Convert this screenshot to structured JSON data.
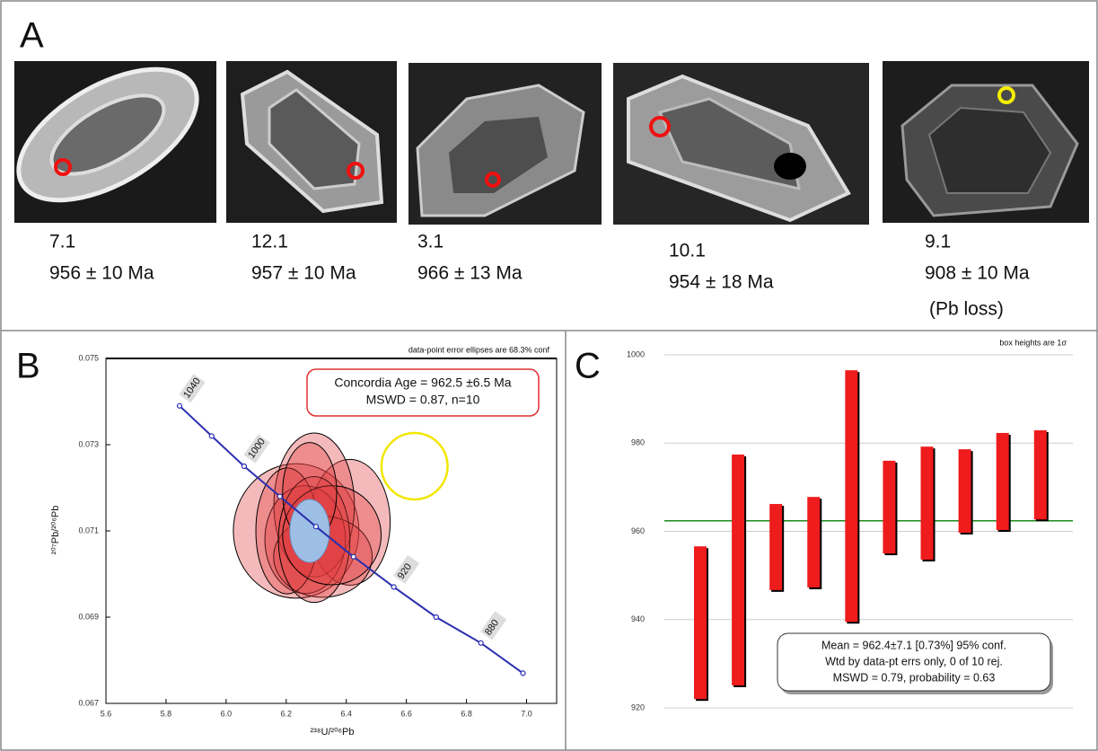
{
  "panel_a": {
    "label": "A",
    "grains": [
      {
        "spot": "7.1",
        "age": "956 ± 10 Ma"
      },
      {
        "spot": "12.1",
        "age": "957 ± 10 Ma"
      },
      {
        "spot": "3.1",
        "age": "966 ± 13 Ma"
      },
      {
        "spot": "10.1",
        "age": "954 ± 18 Ma"
      },
      {
        "spot": "9.1",
        "age": "908 ± 10 Ma",
        "note": "(Pb loss)"
      }
    ]
  },
  "chart_data": [
    {
      "type": "concordia",
      "label": "B",
      "note": "data-point error ellipses are 68.3% conf",
      "annotation": [
        "Concordia Age = 962.5 ±6.5 Ma",
        "MSWD = 0.87, n=10"
      ],
      "xlabel": "²³⁸U/²⁰⁶Pb",
      "ylabel": "²⁰⁷Pb/²⁰⁶Pb",
      "xlim": [
        5.6,
        7.1
      ],
      "xticks": [
        5.6,
        5.8,
        {
          "value": 6,
          "label": "6.0"
        },
        6.2,
        6.4,
        6.6,
        6.8,
        {
          "value": 7,
          "label": "7.0"
        }
      ],
      "ylim": [
        0.067,
        0.075
      ],
      "yticks": [
        0.067,
        0.069,
        0.071,
        0.073,
        0.075
      ],
      "concordia": {
        "color": "#2b2fb0",
        "x": [
          5.845,
          5.952,
          6.06,
          6.179,
          6.299,
          6.424,
          6.558,
          6.699,
          6.848,
          6.988
        ],
        "y": [
          0.0739,
          0.0732,
          0.0725,
          0.0718,
          0.0711,
          0.0704,
          0.0697,
          0.069,
          0.0684,
          0.0677
        ],
        "ages": [
          1040,
          null,
          1000,
          null,
          null,
          null,
          920,
          null,
          880,
          null
        ]
      },
      "ellipses": {
        "color": "#e0383d",
        "x": [
          6.233,
          6.412,
          6.293,
          6.263,
          6.322,
          6.203,
          6.293,
          6.352,
          6.278
        ],
        "y": [
          0.071,
          0.0712,
          0.0716,
          0.0708,
          0.0704,
          0.071,
          0.0708,
          0.0709,
          0.0719
        ],
        "x_err": [
          0.209,
          0.134,
          0.134,
          0.134,
          0.164,
          0.104,
          0.119,
          0.164,
          0.09
        ],
        "y_err": [
          0.00156,
          0.00146,
          0.00167,
          0.00125,
          0.00094,
          0.00146,
          0.00146,
          0.00115,
          0.00115
        ]
      },
      "excluded": {
        "color": "#f2e600",
        "x": 6.627,
        "y": 0.0725,
        "x_err": 0.11,
        "y_err": 0.00077
      },
      "mean": {
        "color": "#9dbfe6",
        "x": 6.278,
        "y": 0.071,
        "x_err": 0.066,
        "y_err": 0.00073
      }
    },
    {
      "type": "box",
      "label": "C",
      "note": "box heights are 1σ",
      "annotation": [
        "Mean = 962.4±7.1  [0.73%]  95% conf.",
        "Wtd by data-pt errs only, 0 of 10 rej.",
        "MSWD = 0.79, probability = 0.63"
      ],
      "ylim": [
        920,
        1000
      ],
      "yticks": [
        920,
        940,
        960,
        980,
        1000
      ],
      "grid": true,
      "color": "#ee1c1c",
      "mean_color": "#1e8a1e",
      "mean": 962.4,
      "low": [
        922.0,
        925.1,
        946.7,
        947.3,
        939.5,
        955.0,
        953.6,
        959.7,
        960.3,
        962.7
      ],
      "high": [
        956.6,
        977.4,
        966.2,
        967.8,
        996.5,
        976.0,
        979.2,
        978.6,
        982.3,
        982.9
      ]
    }
  ]
}
